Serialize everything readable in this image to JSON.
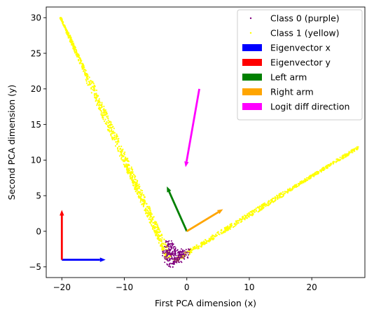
{
  "chart_data": {
    "type": "scatter",
    "title": "",
    "xlabel": "First PCA dimension (x)",
    "ylabel": "Second PCA dimension (y)",
    "xlim": [
      -22.5,
      28.5
    ],
    "ylim": [
      -6.5,
      31.5
    ],
    "xticks": [
      -20,
      -10,
      0,
      10,
      20
    ],
    "yticks": [
      -5,
      0,
      5,
      10,
      15,
      20,
      25,
      30
    ],
    "grid": false,
    "legend_position": "upper-right",
    "series": [
      {
        "name": "Class 0 (purple)",
        "kind": "scatter",
        "color": "#800080",
        "description_points": [
          [
            -2.5,
            -4.6
          ],
          [
            -3.0,
            -4.0
          ],
          [
            -2.0,
            -4.2
          ],
          [
            -2.8,
            -3.5
          ],
          [
            -1.5,
            -4.0
          ],
          [
            -3.2,
            -3.0
          ],
          [
            -2.2,
            -3.6
          ],
          [
            -1.0,
            -3.6
          ],
          [
            -2.6,
            -2.6
          ],
          [
            -0.5,
            -3.3
          ],
          [
            -2.9,
            -1.8
          ],
          [
            -1.8,
            -2.9
          ],
          [
            -0.2,
            -2.9
          ],
          [
            -2.4,
            -2.2
          ],
          [
            -1.2,
            -3.0
          ]
        ]
      },
      {
        "name": "Class 1 (yellow)",
        "kind": "scatter",
        "color": "#ffff00",
        "left_arm": {
          "from": [
            -20.2,
            30
          ],
          "to": [
            -2.8,
            -3.8
          ]
        },
        "right_arm": {
          "from": [
            -2.0,
            -4.2
          ],
          "to": [
            27.5,
            11.8
          ]
        }
      }
    ],
    "arrows": [
      {
        "name": "Eigenvector x",
        "color": "#0000ff",
        "from": [
          -20,
          -4
        ],
        "to": [
          -13,
          -4
        ]
      },
      {
        "name": "Eigenvector y",
        "color": "#ff0000",
        "from": [
          -20,
          -4
        ],
        "to": [
          -20,
          3
        ]
      },
      {
        "name": "Left arm",
        "color": "#008000",
        "from": [
          0,
          0
        ],
        "to": [
          -3.2,
          6.3
        ]
      },
      {
        "name": "Right arm",
        "color": "#ffa500",
        "from": [
          0,
          0
        ],
        "to": [
          5.8,
          3.1
        ]
      },
      {
        "name": "Logit diff direction",
        "color": "#ff00ff",
        "from": [
          2.0,
          20.0
        ],
        "to": [
          -0.2,
          9.0
        ]
      }
    ],
    "legend": [
      {
        "label": "Class 0 (purple)",
        "marker": "point",
        "color": "#800080"
      },
      {
        "label": "Class 1 (yellow)",
        "marker": "point",
        "color": "#ffff00"
      },
      {
        "label": "Eigenvector x",
        "marker": "patch",
        "color": "#0000ff"
      },
      {
        "label": "Eigenvector y",
        "marker": "patch",
        "color": "#ff0000"
      },
      {
        "label": "Left arm",
        "marker": "patch",
        "color": "#008000"
      },
      {
        "label": "Right arm",
        "marker": "patch",
        "color": "#ffa500"
      },
      {
        "label": "Logit diff direction",
        "marker": "patch",
        "color": "#ff00ff"
      }
    ]
  }
}
